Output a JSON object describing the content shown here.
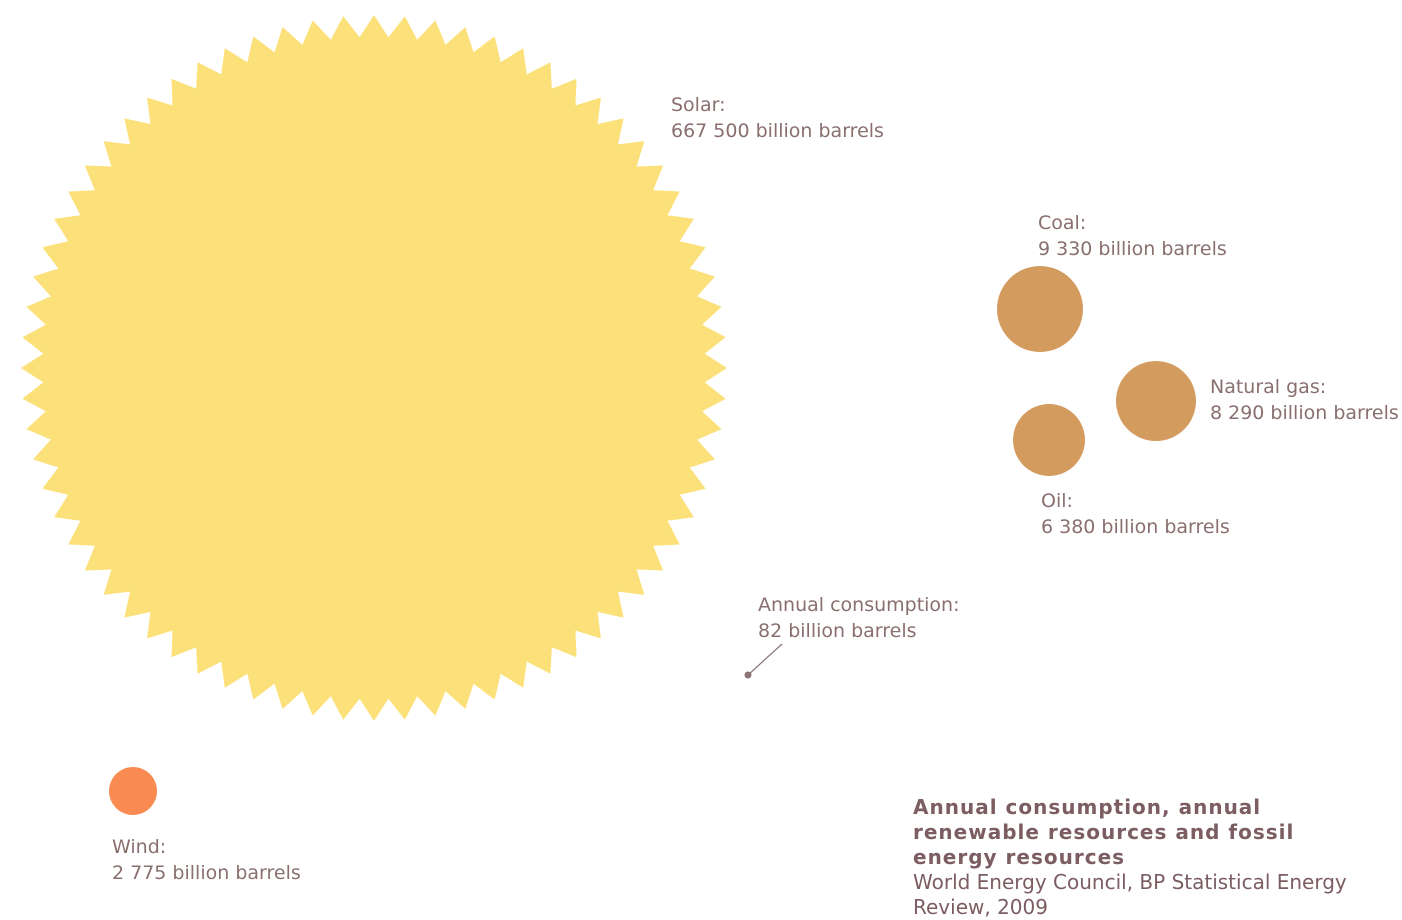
{
  "chart_data": {
    "type": "bubble",
    "unit": "billion barrels",
    "items": [
      {
        "name": "Solar",
        "value": 667500,
        "label": "Solar:",
        "value_text": "667 500 billion barrels",
        "color": "#fce17a",
        "shape": "starburst"
      },
      {
        "name": "Wind",
        "value": 2775,
        "label": "Wind:",
        "value_text": "2 775 billion barrels",
        "color": "#f98b52",
        "shape": "circle"
      },
      {
        "name": "Coal",
        "value": 9330,
        "label": "Coal:",
        "value_text": "9 330 billion barrels",
        "color": "#d49b5e",
        "shape": "circle"
      },
      {
        "name": "Natural gas",
        "value": 8290,
        "label": "Natural gas:",
        "value_text": "8 290 billion barrels",
        "color": "#d49b5e",
        "shape": "circle"
      },
      {
        "name": "Oil",
        "value": 6380,
        "label": "Oil:",
        "value_text": "6 380 billion barrels",
        "color": "#d49b5e",
        "shape": "circle"
      },
      {
        "name": "Annual consumption",
        "value": 82,
        "label": "Annual consumption:",
        "value_text": "82 billion barrels",
        "color": "#8a7474",
        "shape": "dot"
      }
    ],
    "title": "Annual consumption, annual renewable resources and fossil energy resources",
    "source": "World Energy Council, BP Statistical Energy Review, 2009"
  }
}
